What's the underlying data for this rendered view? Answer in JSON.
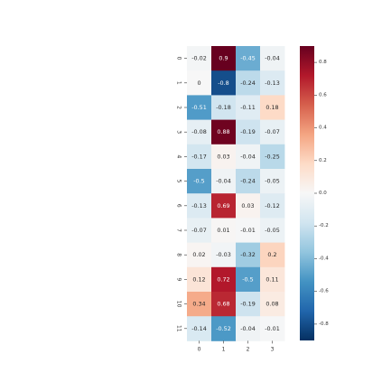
{
  "chart_data": {
    "type": "heatmap",
    "title": "",
    "xlabel": "",
    "ylabel": "",
    "x_tick_labels": [
      "0",
      "1",
      "2",
      "3"
    ],
    "y_tick_labels": [
      "0",
      "1",
      "2",
      "3",
      "4",
      "5",
      "6",
      "7",
      "8",
      "9",
      "10",
      "11"
    ],
    "values": [
      [
        -0.02,
        0.9,
        -0.45,
        -0.04
      ],
      [
        0,
        -0.8,
        -0.24,
        -0.13
      ],
      [
        -0.51,
        -0.18,
        -0.11,
        0.18
      ],
      [
        -0.08,
        0.88,
        -0.19,
        -0.07
      ],
      [
        -0.17,
        0.03,
        -0.04,
        -0.25
      ],
      [
        -0.5,
        -0.04,
        -0.24,
        -0.05
      ],
      [
        -0.13,
        0.69,
        0.03,
        -0.12
      ],
      [
        -0.07,
        0.01,
        -0.01,
        -0.05
      ],
      [
        0.02,
        -0.03,
        -0.32,
        0.2
      ],
      [
        0.12,
        0.72,
        -0.5,
        0.11
      ],
      [
        0.34,
        0.68,
        -0.19,
        0.08
      ],
      [
        -0.14,
        -0.52,
        -0.04,
        -0.01
      ]
    ],
    "annotations": [
      [
        "-0.02",
        "0.9",
        "-0.45",
        "-0.04"
      ],
      [
        "0",
        "-0.8",
        "-0.24",
        "-0.13"
      ],
      [
        "-0.51",
        "-0.18",
        "-0.11",
        "0.18"
      ],
      [
        "-0.08",
        "0.88",
        "-0.19",
        "-0.07"
      ],
      [
        "-0.17",
        "0.03",
        "-0.04",
        "-0.25"
      ],
      [
        "-0.5",
        "-0.04",
        "-0.24",
        "-0.05"
      ],
      [
        "-0.13",
        "0.69",
        "0.03",
        "-0.12"
      ],
      [
        "-0.07",
        "0.01",
        "-0.01",
        "-0.05"
      ],
      [
        "0.02",
        "-0.03",
        "-0.32",
        "0.2"
      ],
      [
        "0.12",
        "0.72",
        "-0.5",
        "0.11"
      ],
      [
        "0.34",
        "0.68",
        "-0.19",
        "0.08"
      ],
      [
        "-0.14",
        "-0.52",
        "-0.04",
        "-0.01"
      ]
    ],
    "colormap": "RdBu_r",
    "colormap_stops": [
      "#053061",
      "#2166ac",
      "#4393c3",
      "#92c5de",
      "#d1e5f0",
      "#f7f7f7",
      "#fddbc7",
      "#f4a582",
      "#d6604d",
      "#b2182b",
      "#67001f"
    ],
    "vmin": -0.9,
    "vmax": 0.9,
    "colorbar_ticks": [
      0.8,
      0.6,
      0.4,
      0.2,
      0.0,
      -0.2,
      -0.4,
      -0.6,
      -0.8
    ],
    "colorbar_tick_labels": [
      "0.8",
      "0.6",
      "0.4",
      "0.2",
      "0.0",
      "-0.2",
      "-0.4",
      "-0.6",
      "-0.8"
    ],
    "label_color_dark": "#262626",
    "label_color_light": "#ffffff"
  }
}
